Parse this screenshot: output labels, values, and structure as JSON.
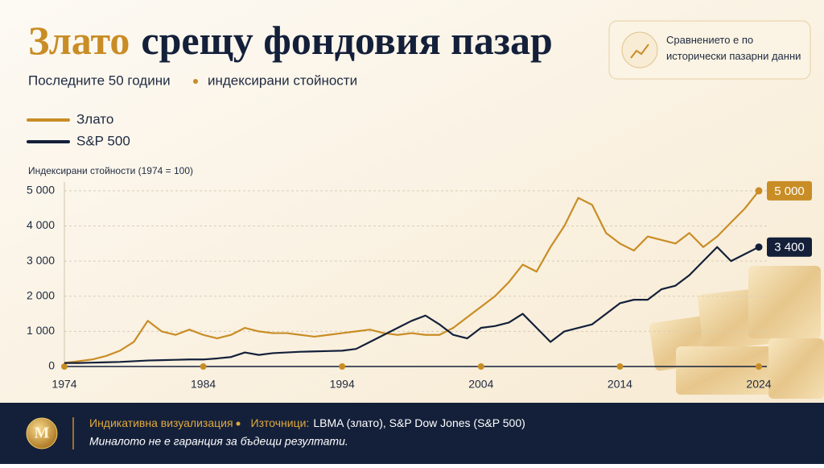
{
  "chart_data": {
    "type": "line",
    "title_highlight": "Злато",
    "title": "срещу фондовия пазар",
    "subtitle_parts": [
      "Последните 50 години",
      "индексирани стойности"
    ],
    "info_box": "Сравнението е по исторически пазарни данни",
    "y_axis_label": "Индексирани стойности (1974 = 100)",
    "x": [
      1974,
      1975,
      1976,
      1977,
      1978,
      1979,
      1980,
      1981,
      1982,
      1983,
      1984,
      1985,
      1986,
      1987,
      1988,
      1989,
      1990,
      1991,
      1992,
      1993,
      1994,
      1995,
      1996,
      1997,
      1998,
      1999,
      2000,
      2001,
      2002,
      2003,
      2004,
      2005,
      2006,
      2007,
      2008,
      2009,
      2010,
      2011,
      2012,
      2013,
      2014,
      2015,
      2016,
      2017,
      2018,
      2019,
      2020,
      2021,
      2022,
      2023,
      2024
    ],
    "series": [
      {
        "name": "Злато",
        "color": "#c98d26",
        "last_label": "5 000",
        "values": [
          100,
          150,
          200,
          300,
          450,
          700,
          1300,
          1000,
          900,
          1050,
          900,
          800,
          900,
          1100,
          1000,
          950,
          950,
          900,
          850,
          900,
          950,
          1000,
          1050,
          950,
          900,
          950,
          900,
          900,
          1100,
          1400,
          1700,
          2000,
          2400,
          2900,
          2700,
          3400,
          4000,
          4800,
          4600,
          3800,
          3500,
          3300,
          3700,
          3600,
          3500,
          3800,
          3400,
          3700,
          4100,
          4500,
          5000
        ]
      },
      {
        "name": "S&P 500",
        "color": "#14203a",
        "last_label": "3 400",
        "values": [
          100,
          100,
          110,
          120,
          130,
          150,
          170,
          180,
          190,
          200,
          200,
          230,
          270,
          400,
          330,
          380,
          400,
          420,
          430,
          440,
          450,
          500,
          700,
          900,
          1100,
          1300,
          1450,
          1200,
          900,
          800,
          1100,
          1150,
          1250,
          1500,
          1100,
          700,
          1000,
          1100,
          1200,
          1500,
          1800,
          1900,
          1900,
          2200,
          2300,
          2600,
          3000,
          3400,
          3000,
          3200,
          3400
        ]
      }
    ],
    "xlim": [
      1974,
      2024
    ],
    "xticks": [
      1974,
      1984,
      1994,
      2004,
      2014,
      2024
    ],
    "ylim": [
      0,
      5250
    ],
    "yticks": [
      0,
      {
        "value": 1000,
        "label": "1 000"
      },
      {
        "value": 2000,
        "label": "2 000"
      },
      {
        "value": 3000,
        "label": "3 000"
      },
      {
        "value": 4000,
        "label": "4 000"
      },
      {
        "value": 5000,
        "label": "5 000"
      }
    ],
    "grid": true,
    "footer": {
      "logo": "M",
      "note": "Индикативна визуализация",
      "sources_label": "Източници:",
      "sources": "LBMA (злато), S&P Dow Jones (S&P 500)",
      "disclaimer": "Миналото не е гаранция за бъдещи резултати."
    }
  }
}
